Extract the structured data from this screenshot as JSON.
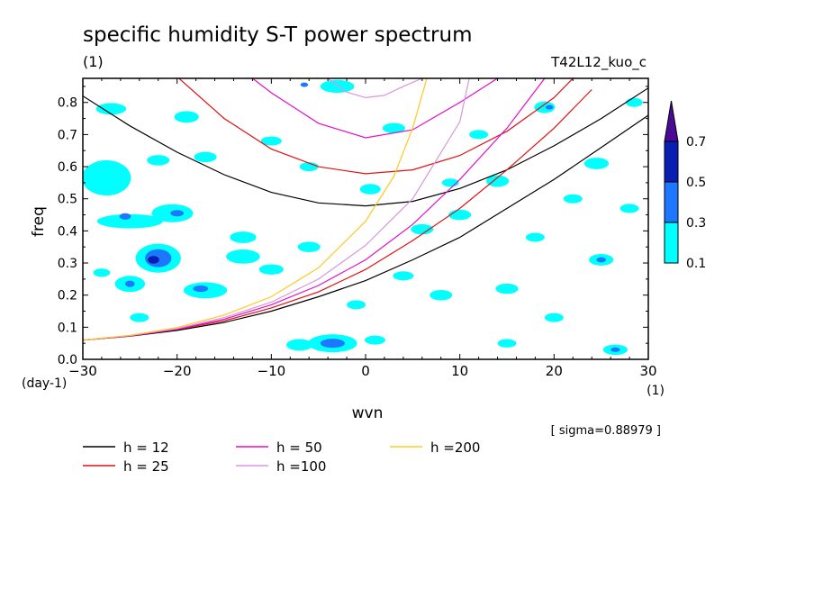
{
  "chart_data": {
    "type": "heatmap",
    "title": "specific humidity S-T power spectrum",
    "unit_label": "(1)",
    "run_label": "T42L12_kuo_c",
    "xlabel": "wvn",
    "ylabel": "freq",
    "x_unit": "(1)",
    "y_unit": "(day-1)",
    "sigma_label": "[ sigma=0.88979 ]",
    "xlim": [
      -30,
      30
    ],
    "ylim": [
      0,
      0.875
    ],
    "x_ticks": [
      -30,
      -20,
      -10,
      0,
      10,
      20,
      30
    ],
    "y_ticks": [
      0.0,
      0.1,
      0.2,
      0.3,
      0.4,
      0.5,
      0.6,
      0.7,
      0.8
    ],
    "colorbar": {
      "levels": [
        0.1,
        0.3,
        0.5,
        0.7
      ],
      "colors": [
        "#00ffff",
        "#1e78ff",
        "#0a1eb4",
        "#4b0a96"
      ]
    },
    "shaded_regions": [
      {
        "level": 0.1,
        "x": -22,
        "y": 0.315,
        "rx": 2.4,
        "ry": 0.045
      },
      {
        "level": 0.3,
        "x": -22,
        "y": 0.315,
        "rx": 1.4,
        "ry": 0.028
      },
      {
        "level": 0.5,
        "x": -22.5,
        "y": 0.31,
        "rx": 0.6,
        "ry": 0.012
      },
      {
        "level": 0.1,
        "x": -3.5,
        "y": 0.05,
        "rx": 2.6,
        "ry": 0.028
      },
      {
        "level": 0.3,
        "x": -3.5,
        "y": 0.05,
        "rx": 1.3,
        "ry": 0.014
      },
      {
        "level": 0.1,
        "x": -17,
        "y": 0.215,
        "rx": 2.3,
        "ry": 0.025
      },
      {
        "level": 0.3,
        "x": -17.5,
        "y": 0.22,
        "rx": 0.8,
        "ry": 0.01
      },
      {
        "level": 0.1,
        "x": -25,
        "y": 0.235,
        "rx": 1.6,
        "ry": 0.025
      },
      {
        "level": 0.3,
        "x": -25,
        "y": 0.235,
        "rx": 0.5,
        "ry": 0.01
      },
      {
        "level": 0.1,
        "x": -27.5,
        "y": 0.565,
        "rx": 2.6,
        "ry": 0.055
      },
      {
        "level": 0.1,
        "x": -25,
        "y": 0.43,
        "rx": 3.5,
        "ry": 0.022
      },
      {
        "level": 0.3,
        "x": -25.5,
        "y": 0.445,
        "rx": 0.6,
        "ry": 0.01
      },
      {
        "level": 0.1,
        "x": -20.5,
        "y": 0.455,
        "rx": 2.2,
        "ry": 0.028
      },
      {
        "level": 0.3,
        "x": -20,
        "y": 0.455,
        "rx": 0.7,
        "ry": 0.01
      },
      {
        "level": 0.1,
        "x": -27,
        "y": 0.78,
        "rx": 1.6,
        "ry": 0.018
      },
      {
        "level": 0.1,
        "x": -19,
        "y": 0.755,
        "rx": 1.3,
        "ry": 0.018
      },
      {
        "level": 0.1,
        "x": -13,
        "y": 0.32,
        "rx": 1.8,
        "ry": 0.022
      },
      {
        "level": 0.1,
        "x": -10,
        "y": 0.28,
        "rx": 1.3,
        "ry": 0.016
      },
      {
        "level": 0.1,
        "x": -6,
        "y": 0.35,
        "rx": 1.2,
        "ry": 0.016
      },
      {
        "level": 0.1,
        "x": 3,
        "y": 0.72,
        "rx": 1.2,
        "ry": 0.016
      },
      {
        "level": 0.1,
        "x": 0.5,
        "y": 0.53,
        "rx": 1.1,
        "ry": 0.016
      },
      {
        "level": 0.1,
        "x": 6,
        "y": 0.405,
        "rx": 1.2,
        "ry": 0.016
      },
      {
        "level": 0.1,
        "x": 10,
        "y": 0.45,
        "rx": 1.2,
        "ry": 0.016
      },
      {
        "level": 0.1,
        "x": 14,
        "y": 0.555,
        "rx": 1.2,
        "ry": 0.018
      },
      {
        "level": 0.1,
        "x": 19,
        "y": 0.785,
        "rx": 1.1,
        "ry": 0.018
      },
      {
        "level": 0.3,
        "x": 19.5,
        "y": 0.785,
        "rx": 0.4,
        "ry": 0.007
      },
      {
        "level": 0.1,
        "x": 24.5,
        "y": 0.61,
        "rx": 1.3,
        "ry": 0.018
      },
      {
        "level": 0.1,
        "x": 25,
        "y": 0.31,
        "rx": 1.3,
        "ry": 0.018
      },
      {
        "level": 0.3,
        "x": 25,
        "y": 0.31,
        "rx": 0.5,
        "ry": 0.008
      },
      {
        "level": 0.1,
        "x": 26.5,
        "y": 0.03,
        "rx": 1.3,
        "ry": 0.016
      },
      {
        "level": 0.3,
        "x": 26.5,
        "y": 0.03,
        "rx": 0.5,
        "ry": 0.007
      },
      {
        "level": 0.1,
        "x": 28,
        "y": 0.47,
        "rx": 1.0,
        "ry": 0.014
      },
      {
        "level": 0.1,
        "x": -7,
        "y": 0.045,
        "rx": 1.4,
        "ry": 0.018
      },
      {
        "level": 0.1,
        "x": -3,
        "y": 0.85,
        "rx": 1.8,
        "ry": 0.02
      },
      {
        "level": 0.3,
        "x": -6.5,
        "y": 0.855,
        "rx": 0.4,
        "ry": 0.007
      },
      {
        "level": 0.1,
        "x": -13,
        "y": 0.38,
        "rx": 1.4,
        "ry": 0.018
      },
      {
        "level": 0.1,
        "x": 8,
        "y": 0.2,
        "rx": 1.2,
        "ry": 0.016
      },
      {
        "level": 0.1,
        "x": 15,
        "y": 0.22,
        "rx": 1.2,
        "ry": 0.016
      },
      {
        "level": 0.1,
        "x": -17,
        "y": 0.63,
        "rx": 1.2,
        "ry": 0.016
      },
      {
        "level": 0.1,
        "x": -22,
        "y": 0.62,
        "rx": 1.2,
        "ry": 0.016
      },
      {
        "level": 0.1,
        "x": 12,
        "y": 0.7,
        "rx": 1.0,
        "ry": 0.014
      },
      {
        "level": 0.1,
        "x": -10,
        "y": 0.68,
        "rx": 1.1,
        "ry": 0.014
      },
      {
        "level": 0.1,
        "x": 18,
        "y": 0.38,
        "rx": 1.0,
        "ry": 0.014
      },
      {
        "level": 0.1,
        "x": 4,
        "y": 0.26,
        "rx": 1.1,
        "ry": 0.014
      },
      {
        "level": 0.1,
        "x": -1,
        "y": 0.17,
        "rx": 1.0,
        "ry": 0.014
      },
      {
        "level": 0.1,
        "x": 20,
        "y": 0.13,
        "rx": 1.0,
        "ry": 0.014
      },
      {
        "level": 0.1,
        "x": -24,
        "y": 0.13,
        "rx": 1.0,
        "ry": 0.014
      },
      {
        "level": 0.1,
        "x": 9,
        "y": 0.55,
        "rx": 0.9,
        "ry": 0.013
      },
      {
        "level": 0.1,
        "x": -6,
        "y": 0.6,
        "rx": 1.0,
        "ry": 0.014
      },
      {
        "level": 0.1,
        "x": 22,
        "y": 0.5,
        "rx": 1.0,
        "ry": 0.014
      },
      {
        "level": 0.1,
        "x": 28.5,
        "y": 0.8,
        "rx": 0.9,
        "ry": 0.014
      },
      {
        "level": 0.1,
        "x": -28,
        "y": 0.27,
        "rx": 0.9,
        "ry": 0.013
      },
      {
        "level": 0.1,
        "x": 1,
        "y": 0.06,
        "rx": 1.1,
        "ry": 0.014
      },
      {
        "level": 0.1,
        "x": 15,
        "y": 0.05,
        "rx": 1.0,
        "ry": 0.013
      }
    ],
    "series": [
      {
        "name": "h = 12",
        "h": 12,
        "color": "#000000",
        "curves": [
          {
            "x": [
              -30,
              -25,
              -20,
              -15,
              -10,
              -5,
              0,
              5,
              10,
              15,
              20,
              25,
              30
            ],
            "y": [
              0.06,
              0.072,
              0.09,
              0.115,
              0.15,
              0.195,
              0.245,
              0.31,
              0.38,
              0.47,
              0.56,
              0.66,
              0.76
            ]
          },
          {
            "x": [
              -30,
              -25,
              -20,
              -15,
              -10,
              -5,
              0,
              5,
              10,
              15,
              20,
              25,
              30
            ],
            "y": [
              0.82,
              0.727,
              0.645,
              0.575,
              0.52,
              0.487,
              0.478,
              0.492,
              0.532,
              0.59,
              0.665,
              0.75,
              0.845
            ]
          }
        ]
      },
      {
        "name": "h = 25",
        "h": 25,
        "color": "#e01010",
        "curves": [
          {
            "x": [
              -30,
              -25,
              -20,
              -15,
              -10,
              -5,
              0,
              5,
              10,
              15,
              20,
              24
            ],
            "y": [
              0.06,
              0.073,
              0.093,
              0.12,
              0.16,
              0.21,
              0.28,
              0.37,
              0.47,
              0.59,
              0.72,
              0.84
            ]
          },
          {
            "x": [
              -20,
              -15,
              -10,
              -5,
              0,
              5,
              10,
              15,
              20,
              22
            ],
            "y": [
              0.88,
              0.75,
              0.655,
              0.6,
              0.578,
              0.59,
              0.635,
              0.71,
              0.815,
              0.875
            ]
          }
        ]
      },
      {
        "name": "h = 50",
        "h": 50,
        "color": "#e010c8",
        "curves": [
          {
            "x": [
              -30,
              -25,
              -20,
              -15,
              -10,
              -5,
              0,
              5,
              10,
              15,
              19
            ],
            "y": [
              0.06,
              0.073,
              0.094,
              0.125,
              0.17,
              0.23,
              0.31,
              0.42,
              0.56,
              0.72,
              0.875
            ]
          },
          {
            "x": [
              -12,
              -10,
              -5,
              0,
              5,
              10,
              14
            ],
            "y": [
              0.875,
              0.83,
              0.735,
              0.69,
              0.715,
              0.8,
              0.875
            ]
          }
        ]
      },
      {
        "name": "h =100",
        "h": 100,
        "color": "#d896e0",
        "curves": [
          {
            "x": [
              -30,
              -25,
              -20,
              -15,
              -10,
              -5,
              0,
              5,
              10,
              11
            ],
            "y": [
              0.06,
              0.074,
              0.096,
              0.13,
              0.178,
              0.25,
              0.355,
              0.5,
              0.74,
              0.875
            ]
          },
          {
            "x": [
              -4,
              -2,
              0,
              2,
              4,
              6
            ],
            "y": [
              0.875,
              0.832,
              0.815,
              0.822,
              0.85,
              0.875
            ]
          }
        ]
      },
      {
        "name": "h =200",
        "h": 200,
        "color": "#ffc81e",
        "curves": [
          {
            "x": [
              -30,
              -25,
              -20,
              -15,
              -10,
              -5,
              0,
              3,
              5,
              6.5
            ],
            "y": [
              0.06,
              0.075,
              0.099,
              0.138,
              0.195,
              0.285,
              0.43,
              0.57,
              0.72,
              0.875
            ]
          }
        ]
      }
    ],
    "legend_placement": "below-plot"
  }
}
